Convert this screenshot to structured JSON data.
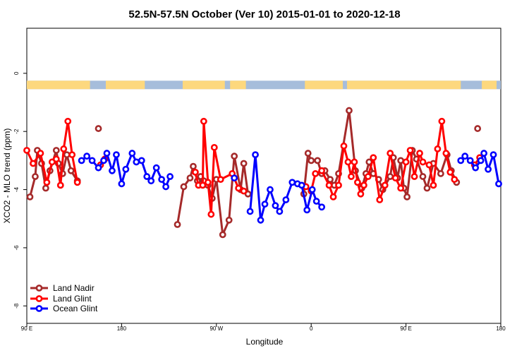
{
  "chart_data": {
    "type": "line",
    "title": "52.5N-57.5N October (Ver 10)   2015-01-01 to 2020-12-18",
    "xlabel": "Longitude",
    "ylabel": "XCO2 - MLO trend (ppm)",
    "x_tick_values": [
      0,
      90,
      180,
      270,
      360,
      450
    ],
    "x_tick_labels": [
      "90 E",
      "180",
      "90 W",
      "0",
      "90 E",
      "180"
    ],
    "y_tick_values": [
      0,
      -2,
      -4,
      -6,
      -8
    ],
    "y_tick_labels": [
      "0",
      "-2",
      "-4",
      "-6",
      "-8"
    ],
    "xlim": [
      0,
      450
    ],
    "ylim": [
      -8.6,
      1.55
    ],
    "land_mask_band": {
      "y_center": -0.4,
      "ocean_color": "#a6bddb",
      "land_color": "#fdd87e"
    },
    "legend_position": "bottom-left",
    "series": [
      {
        "name": "Land Nadir",
        "color": "#a52a2a",
        "segments": [
          [
            [
              3,
              -4.25
            ],
            [
              8,
              -3.55
            ],
            [
              10,
              -2.65
            ],
            [
              14,
              -3.1
            ],
            [
              18,
              -3.95
            ],
            [
              22,
              -3.35
            ],
            [
              28,
              -2.65
            ],
            [
              30,
              -3.1
            ],
            [
              34,
              -3.45
            ],
            [
              38,
              -2.8
            ],
            [
              42,
              -3.35
            ],
            [
              48,
              -3.7
            ]
          ],
          [
            [
              68,
              -1.9
            ]
          ],
          [
            [
              143,
              -5.2
            ],
            [
              149,
              -3.9
            ],
            [
              155,
              -3.6
            ],
            [
              158,
              -3.2
            ],
            [
              162,
              -3.7
            ],
            [
              165,
              -3.55
            ],
            [
              168,
              -3.7
            ],
            [
              172,
              -3.85
            ],
            [
              176,
              -4.3
            ],
            [
              180,
              -3.65
            ],
            [
              186,
              -5.55
            ],
            [
              192,
              -5.05
            ],
            [
              197,
              -2.85
            ],
            [
              203,
              -4.0
            ],
            [
              206,
              -3.1
            ],
            [
              210,
              -4.15
            ]
          ],
          [
            [
              263,
              -4.15
            ],
            [
              267,
              -2.75
            ],
            [
              270,
              -3.0
            ],
            [
              276,
              -3.0
            ],
            [
              280,
              -3.45
            ],
            [
              283,
              -3.35
            ],
            [
              288,
              -3.65
            ],
            [
              292,
              -3.85
            ],
            [
              296,
              -3.45
            ],
            [
              306,
              -1.28
            ],
            [
              312,
              -3.35
            ],
            [
              318,
              -3.95
            ],
            [
              322,
              -3.45
            ],
            [
              325,
              -3.05
            ],
            [
              329,
              -3.45
            ],
            [
              334,
              -3.65
            ],
            [
              338,
              -4.0
            ],
            [
              345,
              -3.55
            ],
            [
              348,
              -2.9
            ],
            [
              352,
              -3.6
            ],
            [
              355,
              -3.0
            ],
            [
              358,
              -3.95
            ],
            [
              361,
              -4.25
            ],
            [
              366,
              -2.65
            ],
            [
              370,
              -2.95
            ],
            [
              376,
              -3.55
            ],
            [
              380,
              -3.95
            ],
            [
              386,
              -3.1
            ],
            [
              393,
              -3.45
            ],
            [
              399,
              -2.8
            ],
            [
              403,
              -3.35
            ],
            [
              408,
              -3.75
            ]
          ],
          [
            [
              428,
              -1.9
            ]
          ]
        ]
      },
      {
        "name": "Land Glint",
        "color": "#ff0000",
        "segments": [
          [
            [
              0,
              -2.65
            ],
            [
              6,
              -3.1
            ],
            [
              13,
              -2.75
            ],
            [
              19,
              -3.75
            ],
            [
              24,
              -3.05
            ],
            [
              28,
              -2.95
            ],
            [
              32,
              -3.85
            ],
            [
              35,
              -2.6
            ],
            [
              39,
              -1.65
            ],
            [
              43,
              -2.8
            ],
            [
              48,
              -3.75
            ]
          ],
          [
            [
              70,
              -3.15
            ],
            [
              74,
              -2.95
            ]
          ],
          [
            [
              160,
              -3.4
            ],
            [
              163,
              -3.85
            ],
            [
              167,
              -3.85
            ],
            [
              168,
              -1.65
            ],
            [
              172,
              -3.75
            ],
            [
              175,
              -4.85
            ],
            [
              178,
              -2.55
            ],
            [
              184,
              -3.65
            ],
            [
              195,
              -3.45
            ],
            [
              201,
              -3.95
            ],
            [
              206,
              -4.05
            ]
          ],
          [
            [
              265,
              -3.9
            ],
            [
              270,
              -4.05
            ],
            [
              274,
              -3.45
            ],
            [
              280,
              -3.35
            ],
            [
              287,
              -3.85
            ],
            [
              291,
              -4.25
            ],
            [
              296,
              -3.85
            ],
            [
              301,
              -2.5
            ],
            [
              305,
              -3.05
            ],
            [
              308,
              -3.55
            ],
            [
              311,
              -3.05
            ],
            [
              314,
              -3.75
            ],
            [
              317,
              -4.15
            ],
            [
              320,
              -3.85
            ],
            [
              324,
              -3.55
            ],
            [
              329,
              -2.9
            ],
            [
              335,
              -4.35
            ],
            [
              340,
              -3.85
            ],
            [
              345,
              -2.75
            ],
            [
              350,
              -3.6
            ],
            [
              355,
              -3.95
            ],
            [
              360,
              -3.05
            ],
            [
              364,
              -2.65
            ],
            [
              368,
              -3.55
            ],
            [
              373,
              -2.75
            ],
            [
              376,
              -3.05
            ],
            [
              382,
              -3.15
            ],
            [
              386,
              -3.85
            ],
            [
              390,
              -2.6
            ],
            [
              394,
              -1.65
            ],
            [
              398,
              -2.75
            ],
            [
              402,
              -3.4
            ],
            [
              406,
              -3.65
            ]
          ],
          [
            [
              425,
              -3.15
            ],
            [
              430,
              -2.9
            ]
          ]
        ]
      },
      {
        "name": "Ocean Glint",
        "color": "#0000ff",
        "segments": [
          [
            [
              52,
              -3.0
            ],
            [
              57,
              -2.85
            ],
            [
              62,
              -3.0
            ],
            [
              68,
              -3.25
            ],
            [
              73,
              -3.0
            ],
            [
              76,
              -2.75
            ],
            [
              81,
              -3.35
            ],
            [
              85,
              -2.8
            ],
            [
              90,
              -3.8
            ],
            [
              94,
              -3.3
            ],
            [
              100,
              -2.75
            ],
            [
              104,
              -3.05
            ],
            [
              109,
              -3.0
            ],
            [
              114,
              -3.55
            ],
            [
              118,
              -3.7
            ],
            [
              123,
              -3.25
            ],
            [
              128,
              -3.65
            ],
            [
              132,
              -3.9
            ],
            [
              136,
              -3.55
            ]
          ],
          [
            [
              197,
              -3.6
            ]
          ],
          [
            [
              212,
              -4.75
            ],
            [
              217,
              -2.8
            ],
            [
              222,
              -5.05
            ],
            [
              226,
              -4.5
            ],
            [
              231,
              -4.0
            ],
            [
              236,
              -4.55
            ],
            [
              240,
              -4.75
            ],
            [
              246,
              -4.35
            ],
            [
              252,
              -3.75
            ],
            [
              257,
              -3.8
            ],
            [
              261,
              -3.85
            ],
            [
              266,
              -4.7
            ],
            [
              271,
              -4.0
            ],
            [
              275,
              -4.4
            ],
            [
              280,
              -4.6
            ]
          ],
          [
            [
              412,
              -3.0
            ],
            [
              416,
              -2.85
            ],
            [
              421,
              -3.0
            ],
            [
              426,
              -3.25
            ],
            [
              431,
              -3.0
            ],
            [
              434,
              -2.75
            ],
            [
              438,
              -3.3
            ],
            [
              443,
              -2.8
            ],
            [
              448,
              -3.8
            ]
          ]
        ]
      }
    ]
  }
}
